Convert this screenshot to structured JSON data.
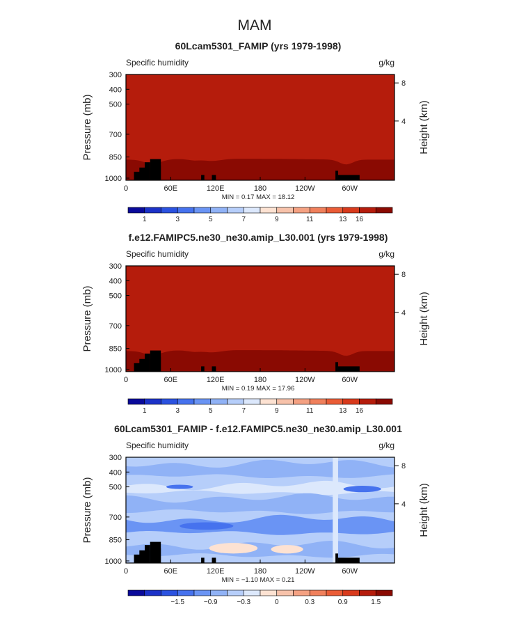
{
  "page_title": "MAM",
  "chart_data": [
    {
      "type": "heatmap",
      "title": "60Lcam5301_FAMIP (yrs 1979-1998)",
      "left_label": "Specific humidity",
      "units": "g/kg",
      "ylabel": "Pressure (mb)",
      "ylabel_right": "Height (km)",
      "x_ticks": [
        "0",
        "60E",
        "120E",
        "180",
        "120W",
        "60W"
      ],
      "y_ticks": [
        "300",
        "400",
        "500",
        "700",
        "850",
        "1000"
      ],
      "y_ticks_right": [
        "8",
        "4"
      ],
      "stats": "MIN =    0.17   MAX =   18.12",
      "colorbar": {
        "labels": [
          "1",
          "3",
          "5",
          "7",
          "9",
          "11",
          "13",
          "16"
        ],
        "colors": [
          "#0a0a9a",
          "#1c32c8",
          "#2b52e0",
          "#4672ee",
          "#6a94f4",
          "#90b2f6",
          "#b6cefa",
          "#dce8fc",
          "#fde2d2",
          "#f7c2aa",
          "#f4a182",
          "#f0805c",
          "#ea5c36",
          "#d83a1c",
          "#b51c0c",
          "#8a0a02"
        ]
      },
      "field": {
        "kind": "full"
      }
    },
    {
      "type": "heatmap",
      "title": "f.e12.FAMIPC5.ne30_ne30.amip_L30.001 (yrs 1979-1998)",
      "left_label": "Specific humidity",
      "units": "g/kg",
      "ylabel": "Pressure (mb)",
      "ylabel_right": "Height (km)",
      "x_ticks": [
        "0",
        "60E",
        "120E",
        "180",
        "120W",
        "60W"
      ],
      "y_ticks": [
        "300",
        "400",
        "500",
        "700",
        "850",
        "1000"
      ],
      "y_ticks_right": [
        "8",
        "4"
      ],
      "stats": "MIN =    0.19   MAX =   17.96",
      "colorbar": {
        "labels": [
          "1",
          "3",
          "5",
          "7",
          "9",
          "11",
          "13",
          "16"
        ],
        "colors": [
          "#0a0a9a",
          "#1c32c8",
          "#2b52e0",
          "#4672ee",
          "#6a94f4",
          "#90b2f6",
          "#b6cefa",
          "#dce8fc",
          "#fde2d2",
          "#f7c2aa",
          "#f4a182",
          "#f0805c",
          "#ea5c36",
          "#d83a1c",
          "#b51c0c",
          "#8a0a02"
        ]
      },
      "field": {
        "kind": "full"
      }
    },
    {
      "type": "heatmap",
      "title": "60Lcam5301_FAMIP - f.e12.FAMIPC5.ne30_ne30.amip_L30.001",
      "left_label": "Specific humidity",
      "units": "g/kg",
      "ylabel": "Pressure (mb)",
      "ylabel_right": "Height (km)",
      "x_ticks": [
        "0",
        "60E",
        "120E",
        "180",
        "120W",
        "60W"
      ],
      "y_ticks": [
        "300",
        "400",
        "500",
        "700",
        "850",
        "1000"
      ],
      "y_ticks_right": [
        "8",
        "4"
      ],
      "stats": "MIN =   −1.10   MAX =    0.21",
      "colorbar": {
        "labels": [
          "−1.5",
          "−0.9",
          "−0.3",
          "0",
          "0.3",
          "0.9",
          "1.5"
        ],
        "colors": [
          "#0a0a9a",
          "#1c32c8",
          "#2b52e0",
          "#4672ee",
          "#6a94f4",
          "#90b2f6",
          "#b6cefa",
          "#dce8fc",
          "#fde2d2",
          "#f7c2aa",
          "#f4a182",
          "#f0805c",
          "#ea5c36",
          "#d83a1c",
          "#b51c0c",
          "#8a0a02"
        ]
      },
      "field": {
        "kind": "diff"
      }
    }
  ]
}
